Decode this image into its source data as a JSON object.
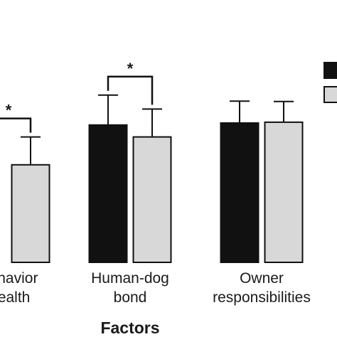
{
  "chart_data": {
    "type": "bar",
    "xlabel": "Factors",
    "ylabel": "",
    "categories": [
      {
        "lines": [
          "Behavior",
          "Health"
        ]
      },
      {
        "lines": [
          "Human-dog",
          "bond"
        ]
      },
      {
        "lines": [
          "Owner",
          "responsibilities"
        ]
      }
    ],
    "series": [
      {
        "color": "#111111",
        "values": [
          null,
          3.45,
          3.5
        ],
        "errors": [
          null,
          0.75,
          0.55
        ]
      },
      {
        "color": "#d8d8d8",
        "values": [
          2.45,
          3.15,
          3.52
        ],
        "errors": [
          0.7,
          0.7,
          0.52
        ]
      }
    ],
    "ylim": [
      0,
      5
    ],
    "significance": [
      {
        "category_index": 0,
        "label": "*"
      },
      {
        "category_index": 1,
        "label": "*"
      }
    ],
    "legend": {
      "placement": "top-right"
    }
  }
}
